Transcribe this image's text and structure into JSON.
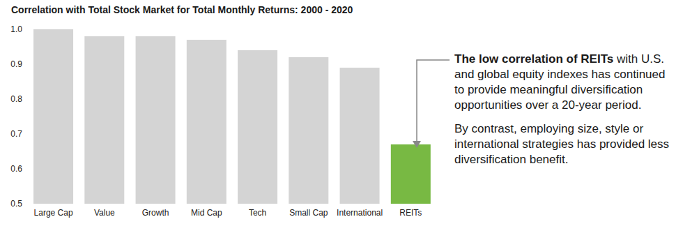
{
  "chart_data": {
    "type": "bar",
    "title": "Correlation with Total Stock Market for Total Monthly Returns: 2000 - 2020",
    "categories": [
      "Large Cap",
      "Value",
      "Growth",
      "Mid Cap",
      "Tech",
      "Small Cap",
      "International",
      "REITs"
    ],
    "values": [
      1.0,
      0.98,
      0.98,
      0.97,
      0.94,
      0.92,
      0.89,
      0.67
    ],
    "colors": [
      "#d4d4d4",
      "#d4d4d4",
      "#d4d4d4",
      "#d4d4d4",
      "#d4d4d4",
      "#d4d4d4",
      "#d4d4d4",
      "#78b943"
    ],
    "ylim": [
      0.5,
      1.0
    ],
    "yticks": [
      0.5,
      0.6,
      0.7,
      0.8,
      0.9,
      {
        "value": 1,
        "label": "1.0"
      }
    ],
    "grid": false,
    "annotation": {
      "paragraphs": [
        {
          "bold": "The low correlation of REITs",
          "text": " with U.S. and global equity indexes has continued to provide meaningful diversification opportunities over a 20-year period."
        },
        {
          "bold": "",
          "text": "By contrast, employing size, style or international strategies has provided less diversification benefit."
        }
      ]
    }
  }
}
